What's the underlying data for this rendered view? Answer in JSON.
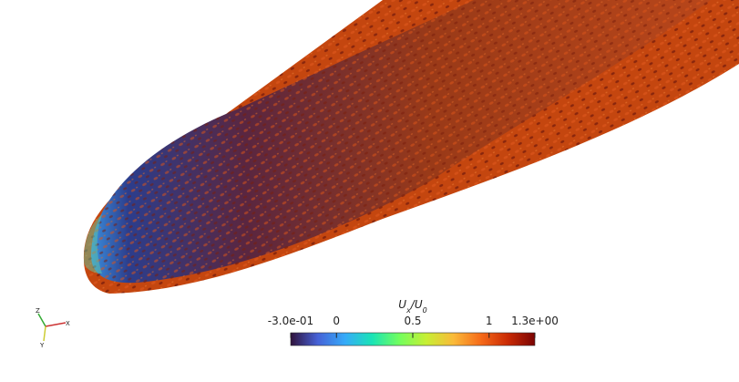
{
  "colorbar": {
    "title_parts": [
      {
        "text": "U",
        "sub": false
      },
      {
        "text": "x",
        "sub": true
      },
      {
        "text": "/U",
        "sub": false
      },
      {
        "text": "0",
        "sub": true
      }
    ],
    "range": [
      -0.3,
      1.3
    ],
    "ticks": [
      {
        "value": -0.3,
        "label": "-3.0e-01"
      },
      0,
      0.5,
      1,
      {
        "value": 1.3,
        "label": "1.3e+00"
      }
    ],
    "colormap": [
      "#30123b",
      "#4662d7",
      "#36aaf9",
      "#1ae4b6",
      "#72fe5e",
      "#c7ef34",
      "#faba39",
      "#f66b19",
      "#ca2a04",
      "#7a0403"
    ]
  },
  "axes_triad": {
    "labels": [
      "Z",
      "X",
      "Y"
    ]
  }
}
